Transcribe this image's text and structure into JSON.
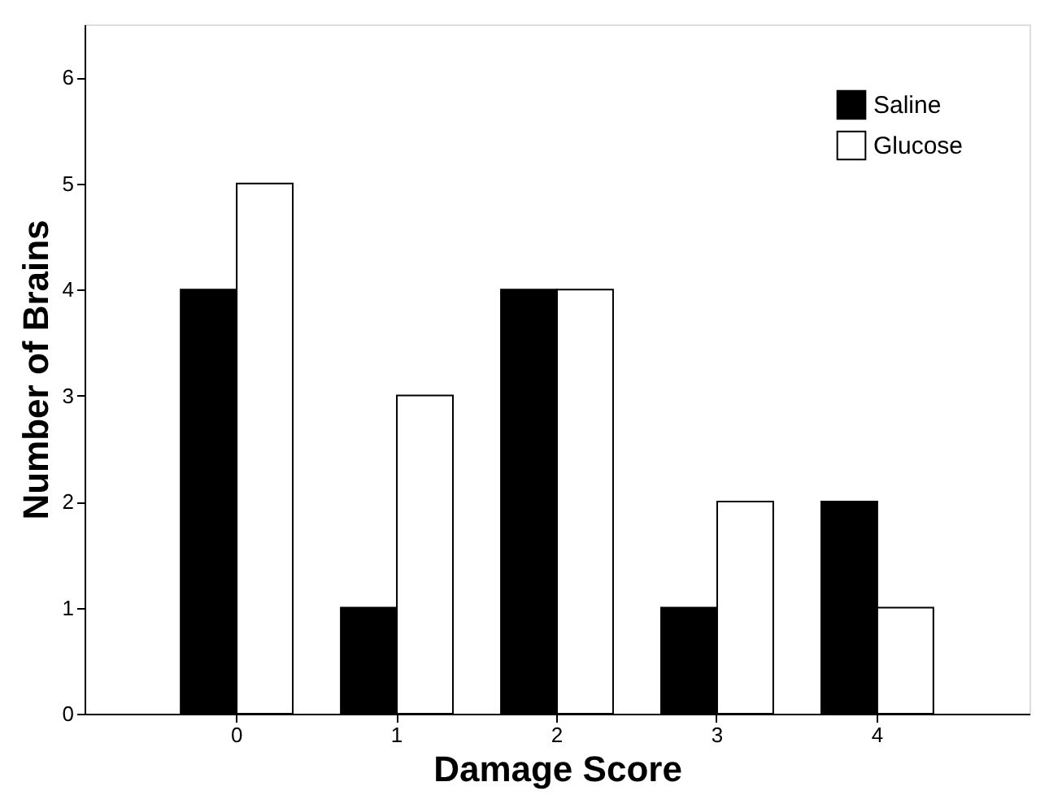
{
  "chart_data": {
    "type": "bar",
    "xlabel": "Damage Score",
    "ylabel": "Number of Brains",
    "categories": [
      "0",
      "1",
      "2",
      "3",
      "4"
    ],
    "series": [
      {
        "name": "Saline",
        "color": "#000000",
        "values": [
          4,
          1,
          4,
          1,
          2
        ]
      },
      {
        "name": "Glucose",
        "color": "#ffffff",
        "values": [
          5,
          3,
          4,
          2,
          1
        ]
      }
    ],
    "ylim": [
      0,
      6.5
    ],
    "yticks": [
      0,
      1,
      2,
      3,
      4,
      5,
      6
    ],
    "grid": false,
    "legend": "top right"
  }
}
